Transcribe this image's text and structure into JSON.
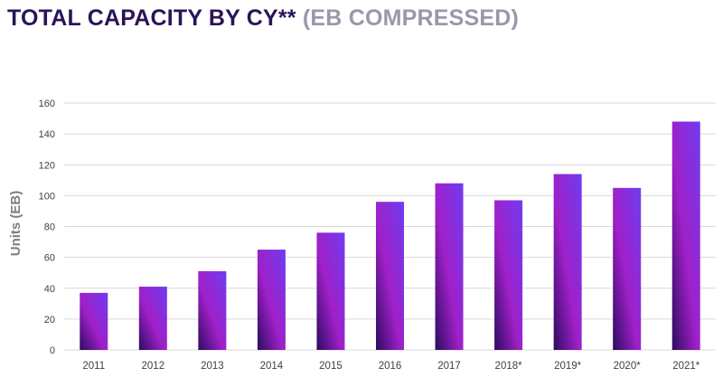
{
  "title": {
    "main": "TOTAL CAPACITY BY CY**",
    "sub": "(EB COMPRESSED)"
  },
  "colors": {
    "title": "#2a1458",
    "subtitle": "#9a98a8",
    "grid": "#d9d9d9",
    "bar_dark": "#2b0c5e",
    "bar_mid": "#a020c8",
    "bar_light": "#6f3cf0"
  },
  "chart_data": {
    "type": "bar",
    "title": "TOTAL CAPACITY BY CY** (EB COMPRESSED)",
    "categories": [
      "2011",
      "2012",
      "2013",
      "2014",
      "2015",
      "2016",
      "2017",
      "2018*",
      "2019*",
      "2020*",
      "2021*"
    ],
    "values": [
      37,
      41,
      51,
      65,
      76,
      96,
      108,
      97,
      114,
      105,
      148
    ],
    "xlabel": "",
    "ylabel": "Units (EB)",
    "ylim": [
      0,
      160
    ],
    "yticks": [
      0,
      20,
      40,
      60,
      80,
      100,
      120,
      140,
      160
    ],
    "grid": true,
    "legend": "none"
  }
}
